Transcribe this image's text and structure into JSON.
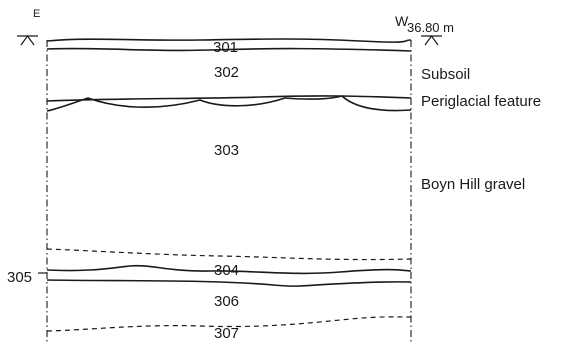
{
  "section": {
    "end_left": "E",
    "end_right": "W",
    "datum": "36.80 m",
    "contexts": [
      {
        "id": "301"
      },
      {
        "id": "302"
      },
      {
        "id": "303"
      },
      {
        "id": "304"
      },
      {
        "id": "305"
      },
      {
        "id": "306"
      },
      {
        "id": "307"
      }
    ],
    "labels": [
      "Subsoil",
      "Periglacial feature",
      "Boyn Hill gravel"
    ]
  }
}
